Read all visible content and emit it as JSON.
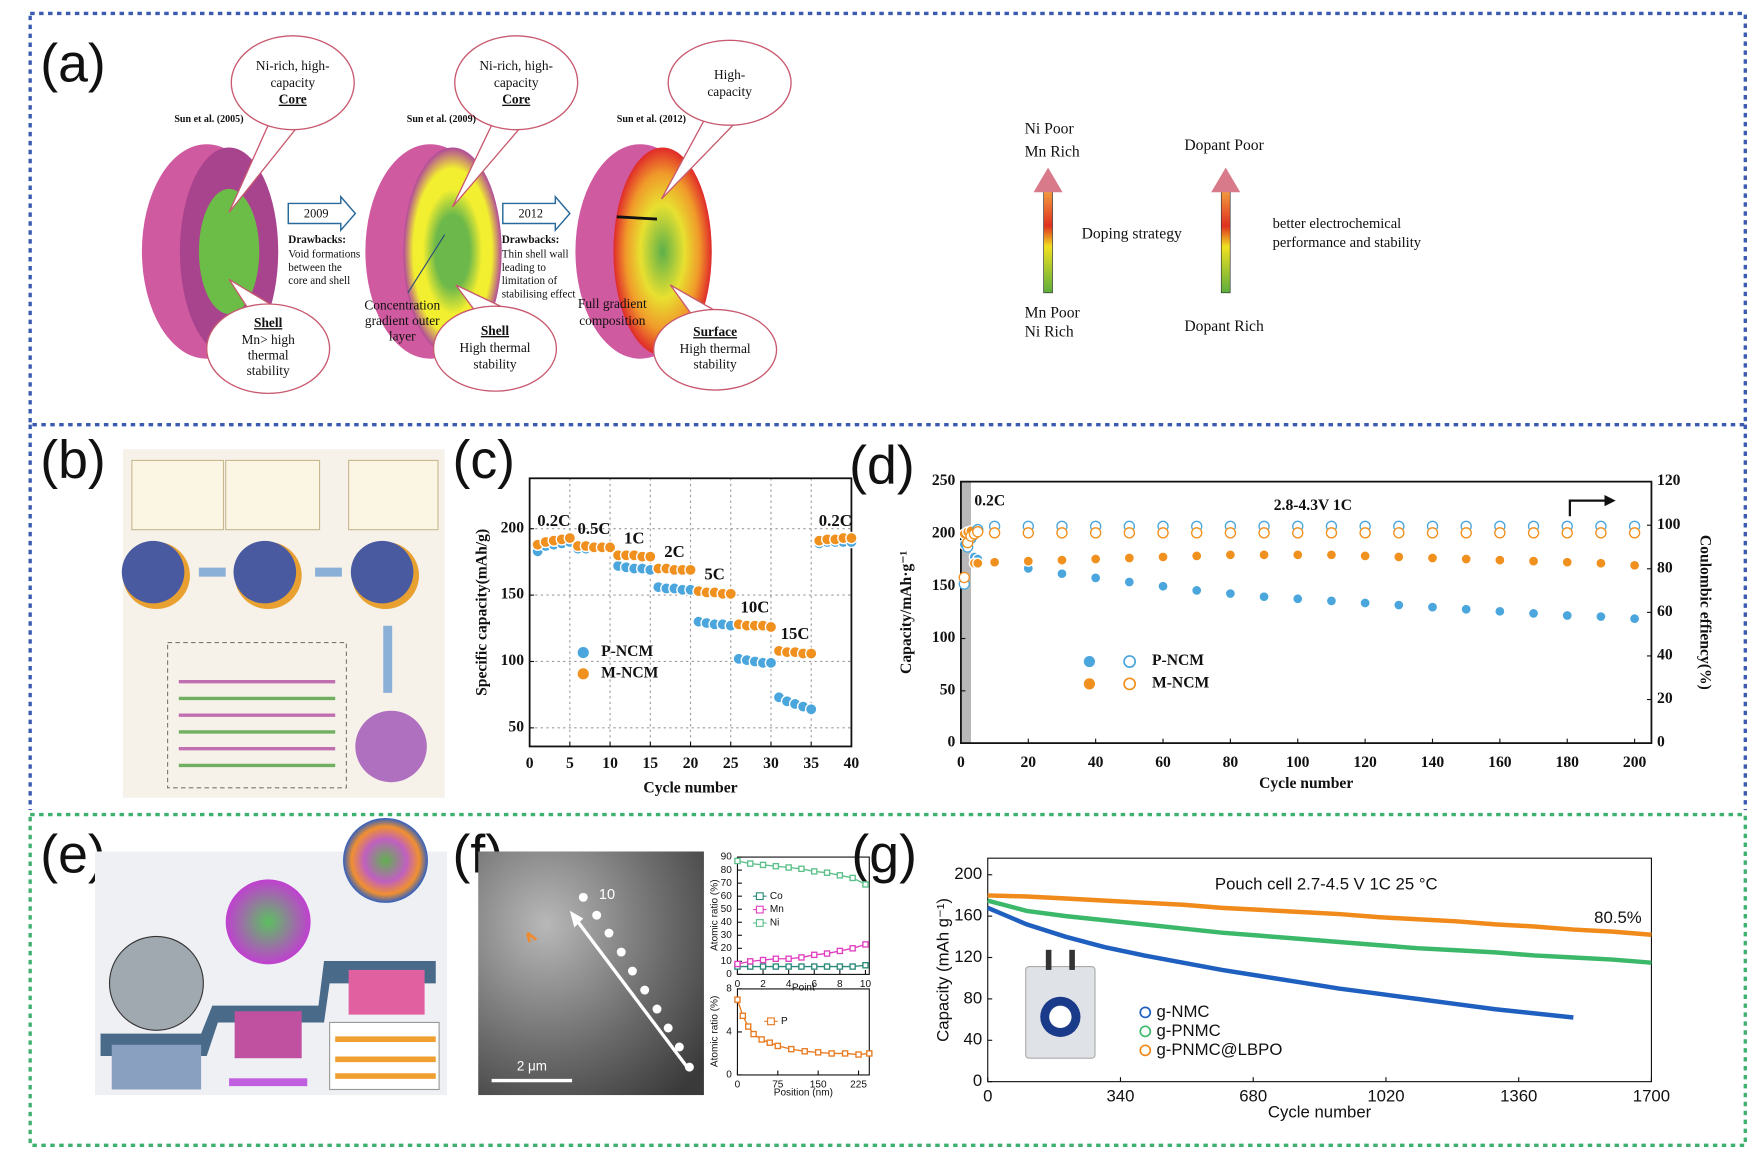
{
  "panel_labels": [
    "(a)",
    "(b)",
    "(c)",
    "(d)",
    "(e)",
    "(f)",
    "(g)"
  ],
  "panel_a": {
    "studies": [
      "Sun et al. (2005)",
      "Sun et al. (2009)",
      "Sun et al. (2012)"
    ],
    "arrows": [
      "2009",
      "2012"
    ],
    "bubbles": [
      {
        "lines": [
          "Ni-rich, high-",
          "capacity"
        ],
        "term": "Core"
      },
      {
        "term": "Shell",
        "lines": [
          "Mn> high",
          "thermal",
          "stability"
        ]
      },
      {
        "lines": [
          "Ni-rich, high-",
          "capacity"
        ],
        "term": "Core"
      },
      {
        "term": "Shell",
        "lines": [
          "High thermal",
          "stability"
        ]
      },
      {
        "lines": [
          "High-",
          "capacity"
        ]
      },
      {
        "term": "Surface",
        "lines": [
          "High thermal",
          "stability"
        ]
      }
    ],
    "drawbacks": [
      {
        "title": "Drawbacks:",
        "lines": [
          "Void formations",
          "between the",
          "core and shell"
        ]
      },
      {
        "title": "Drawbacks:",
        "lines": [
          "Thin shell wall",
          "leading to",
          "limitation of",
          "stabilising effect"
        ]
      }
    ],
    "notes": [
      {
        "lines": [
          "Concentration",
          "gradient outer",
          "layer"
        ]
      },
      {
        "lines": [
          "Full gradient",
          "composition"
        ]
      }
    ],
    "doping": {
      "top": [
        "Ni Poor",
        "Mn Rich"
      ],
      "bottom": [
        "Mn Poor",
        "Ni Rich"
      ],
      "middle": "Doping strategy"
    },
    "dopant": {
      "top": "Dopant Poor",
      "bottom": "Dopant Rich",
      "side": [
        "better electrochemical",
        "performance and stability"
      ]
    }
  },
  "panel_f": {
    "point_label": "10",
    "scale_bar": "2 μm"
  },
  "chart_data": [
    {
      "type": "scatter",
      "xlabel": "Cycle number",
      "ylabel": "Specific capacity(mAh/g)",
      "x": [
        1,
        2,
        3,
        4,
        5,
        6,
        7,
        8,
        9,
        10,
        11,
        12,
        13,
        14,
        15,
        16,
        17,
        18,
        19,
        20,
        21,
        22,
        23,
        24,
        25,
        26,
        27,
        28,
        29,
        30,
        31,
        32,
        33,
        34,
        35,
        36,
        37,
        38,
        39,
        40
      ],
      "xlim": [
        0,
        40
      ],
      "xticks": [
        0,
        5,
        10,
        15,
        20,
        25,
        30,
        35,
        40
      ],
      "ylim": [
        36,
        238
      ],
      "yticks": [
        50,
        100,
        150,
        200
      ],
      "grid": true,
      "rate_labels": [
        "0.2C",
        "0.5C",
        "1C",
        "2C",
        "5C",
        "10C",
        "15C",
        "0.2C"
      ],
      "series": [
        {
          "name": "P-NCM",
          "color": "#4aa6dc",
          "marker": "filled",
          "values": [
            183,
            187,
            188,
            189,
            190,
            185,
            185,
            185,
            185,
            185,
            172,
            171,
            170,
            170,
            169,
            156,
            155,
            155,
            154,
            154,
            130,
            129,
            128,
            128,
            127,
            102,
            101,
            100,
            99,
            99,
            73,
            70,
            68,
            66,
            64,
            189,
            190,
            190,
            190,
            190
          ]
        },
        {
          "name": "M-NCM",
          "color": "#f0901e",
          "marker": "filled",
          "values": [
            188,
            190,
            191,
            192,
            193,
            187,
            187,
            186,
            186,
            186,
            180,
            180,
            180,
            179,
            179,
            170,
            170,
            169,
            169,
            169,
            153,
            152,
            152,
            151,
            151,
            128,
            127,
            127,
            127,
            126,
            108,
            107,
            107,
            106,
            106,
            191,
            192,
            192,
            193,
            193
          ]
        }
      ]
    },
    {
      "type": "scatter",
      "xlabel": "Cycle number",
      "ylabel": "Capacity/mAh·g⁻¹",
      "y2label": "Coulombic effiency(%)",
      "annotations": [
        "0.2C",
        "2.8-4.3V 1C"
      ],
      "shaded_range": [
        0,
        3
      ],
      "x": [
        1,
        2,
        3,
        4,
        5,
        10,
        20,
        30,
        40,
        50,
        60,
        70,
        80,
        90,
        100,
        110,
        120,
        130,
        140,
        150,
        160,
        170,
        180,
        190,
        200
      ],
      "xlim": [
        0,
        205
      ],
      "xticks": [
        0,
        20,
        40,
        60,
        80,
        100,
        120,
        140,
        160,
        180,
        200
      ],
      "ylim": [
        0,
        250
      ],
      "yticks": [
        0,
        50,
        100,
        150,
        200,
        250
      ],
      "y2lim": [
        0,
        120
      ],
      "y2ticks": [
        0,
        20,
        40,
        60,
        80,
        100,
        120
      ],
      "grid": false,
      "series": [
        {
          "name": "P-NCM",
          "color": "#4aa6dc",
          "marker": "filled",
          "values": [
            190,
            195,
            197,
            178,
            176,
            172,
            167,
            162,
            158,
            154,
            150,
            146,
            143,
            140,
            138,
            136,
            134,
            132,
            130,
            128,
            126,
            124,
            122,
            121,
            119
          ]
        },
        {
          "name": "M-NCM",
          "color": "#f0901e",
          "marker": "filled",
          "values": [
            200,
            202,
            203,
            172,
            172,
            173,
            174,
            175,
            176,
            177,
            178,
            179,
            180,
            180,
            180,
            180,
            179,
            178,
            177,
            176,
            175,
            174,
            173,
            172,
            170
          ]
        },
        {
          "color": "#4aa6dc",
          "marker": "hollow",
          "axis": "y2",
          "values": [
            73,
            90,
            94,
            96,
            98,
            99.5,
            99.5,
            99.5,
            99.5,
            99.5,
            99.5,
            99.5,
            99.5,
            99.5,
            99.5,
            99.5,
            99.5,
            99.5,
            99.5,
            99.5,
            99.5,
            99.5,
            99.5,
            99.5,
            99.5
          ]
        },
        {
          "color": "#f0901e",
          "marker": "hollow",
          "axis": "y2",
          "values": [
            76,
            92,
            95,
            96,
            97,
            96.5,
            96.5,
            96.5,
            96.5,
            96.5,
            96.5,
            96.5,
            96.5,
            96.5,
            96.5,
            96.5,
            96.5,
            96.5,
            96.5,
            96.5,
            96.5,
            96.5,
            96.5,
            96.5,
            96.5
          ]
        }
      ]
    },
    {
      "type": "line",
      "xlabel": "Point",
      "ylabel": "Atomic ratio (%)",
      "x": [
        0,
        1,
        2,
        3,
        4,
        5,
        6,
        7,
        8,
        9,
        10
      ],
      "xlim": [
        0,
        10.3
      ],
      "xticks": [
        0,
        2,
        4,
        6,
        8,
        10
      ],
      "ylim": [
        0,
        90
      ],
      "yticks": [
        0,
        10,
        20,
        30,
        40,
        50,
        60,
        70,
        80,
        90
      ],
      "grid": false,
      "series": [
        {
          "name": "Co",
          "color": "#2a8a7a",
          "marker": "square",
          "values": [
            6,
            6,
            6,
            6,
            6,
            6,
            6,
            6,
            6,
            6,
            7
          ]
        },
        {
          "name": "Mn",
          "color": "#e040c0",
          "marker": "square",
          "values": [
            8,
            10,
            11,
            12,
            12,
            13,
            15,
            16,
            18,
            20,
            23
          ]
        },
        {
          "name": "Ni",
          "color": "#5cc08a",
          "marker": "square",
          "values": [
            87,
            85,
            84,
            83,
            82,
            81,
            79,
            78,
            76,
            74,
            69
          ]
        }
      ]
    },
    {
      "type": "line",
      "xlabel": "Position (nm)",
      "ylabel": "Atomic ratio (%)",
      "x": [
        0,
        10,
        20,
        30,
        45,
        60,
        75,
        100,
        125,
        150,
        175,
        200,
        225,
        245
      ],
      "xlim": [
        0,
        245
      ],
      "xticks": [
        0,
        75,
        150,
        225
      ],
      "ylim": [
        0,
        8
      ],
      "yticks": [
        0,
        4,
        8
      ],
      "grid": false,
      "series": [
        {
          "name": "P",
          "color": "#e87a20",
          "marker": "square",
          "values": [
            7,
            5.5,
            4.5,
            3.8,
            3.3,
            3,
            2.7,
            2.4,
            2.2,
            2.1,
            2,
            2,
            1.9,
            2
          ]
        }
      ]
    },
    {
      "type": "line",
      "xlabel": "Cycle number",
      "ylabel": "Capacity (mAh g⁻¹)",
      "annotations": [
        "Pouch cell 2.7-4.5 V 1C 25 °C",
        "80.5%"
      ],
      "x": [
        0,
        100,
        200,
        300,
        400,
        500,
        600,
        700,
        800,
        900,
        1000,
        1100,
        1200,
        1300,
        1400,
        1500,
        1600,
        1700
      ],
      "xlim": [
        0,
        1700
      ],
      "xticks": [
        0,
        340,
        680,
        1020,
        1360,
        1700
      ],
      "ylim": [
        0,
        216
      ],
      "yticks": [
        0,
        40,
        80,
        120,
        160,
        200
      ],
      "grid": false,
      "series": [
        {
          "name": "g-NMC",
          "color": "#1f5fbf",
          "values": [
            168,
            152,
            140,
            130,
            122,
            115,
            108,
            102,
            96,
            90,
            85,
            80,
            75,
            70,
            66,
            62,
            null,
            null
          ]
        },
        {
          "name": "g-PNMC",
          "color": "#3cb86a",
          "values": [
            175,
            165,
            160,
            156,
            152,
            148,
            144,
            141,
            138,
            135,
            132,
            129,
            127,
            125,
            122,
            120,
            118,
            115
          ]
        },
        {
          "name": "g-PNMC@LBPO",
          "color": "#f08a1a",
          "values": [
            180,
            179,
            177,
            175,
            173,
            171,
            168,
            166,
            164,
            162,
            159,
            157,
            155,
            152,
            150,
            147,
            145,
            142
          ]
        }
      ]
    }
  ]
}
